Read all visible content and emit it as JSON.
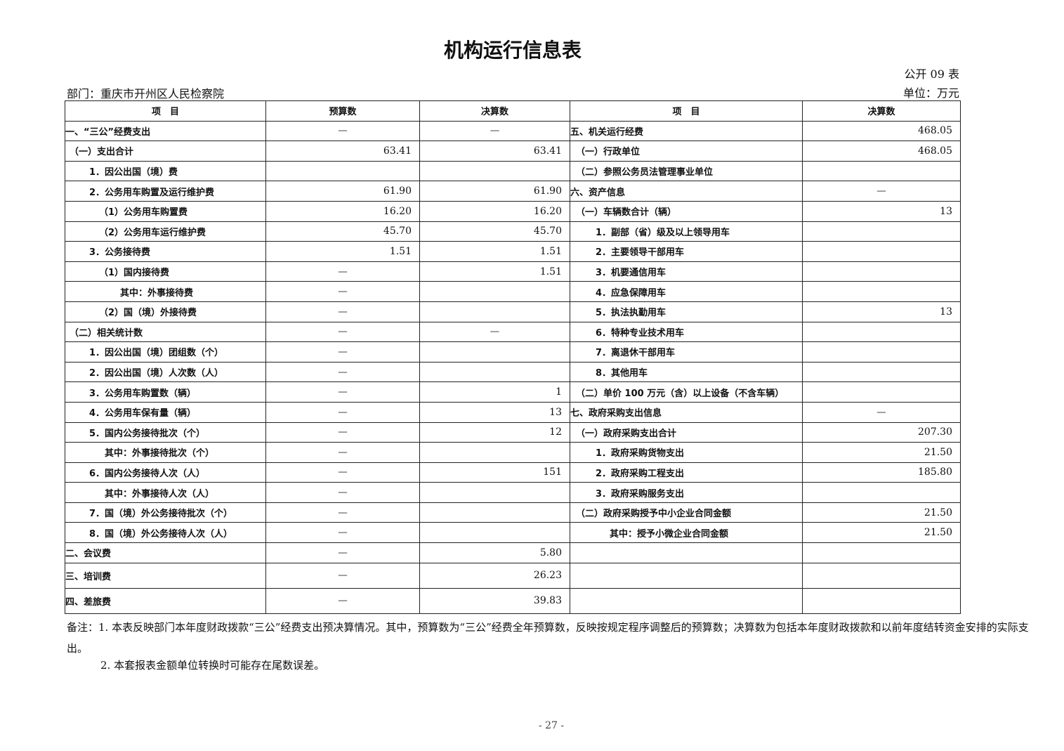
{
  "title": "机构运行信息表",
  "table_no": "公开 09 表",
  "department": "部门：重庆市开州区人民检察院",
  "unit": "单位：万元",
  "headers": [
    "项　目",
    "预算数",
    "决算数",
    "项　目",
    "决算数"
  ],
  "rows": [
    {
      "l": "一、“三公”经费支出",
      "lv": 0,
      "b": "—",
      "f": "—",
      "r": "五、机关运行经费",
      "rv": 0,
      "rf": "468.05"
    },
    {
      "l": "（一）支出合计",
      "lv": 1,
      "b": "63.41",
      "f": "63.41",
      "r": "（一）行政单位",
      "rv": 1,
      "rf": "468.05"
    },
    {
      "l": "1．因公出国（境）费",
      "lv": 2,
      "b": "",
      "f": "",
      "r": "（二）参照公务员法管理事业单位",
      "rv": 1,
      "rf": ""
    },
    {
      "l": "2．公务用车购置及运行维护费",
      "lv": 2,
      "b": "61.90",
      "f": "61.90",
      "r": "六、资产信息",
      "rv": 0,
      "rf": "—"
    },
    {
      "l": "（1）公务用车购置费",
      "lv": 3,
      "b": "16.20",
      "f": "16.20",
      "r": "（一）车辆数合计（辆）",
      "rv": 1,
      "rf": "13"
    },
    {
      "l": "（2）公务用车运行维护费",
      "lv": 3,
      "b": "45.70",
      "f": "45.70",
      "r": "1．副部（省）级及以上领导用车",
      "rv": 2,
      "rf": ""
    },
    {
      "l": "3．公务接待费",
      "lv": 2,
      "b": "1.51",
      "f": "1.51",
      "r": "2．主要领导干部用车",
      "rv": 2,
      "rf": ""
    },
    {
      "l": "（1）国内接待费",
      "lv": 3,
      "b": "—",
      "f": "1.51",
      "r": "3．机要通信用车",
      "rv": 2,
      "rf": ""
    },
    {
      "l": "其中：外事接待费",
      "lv": 4,
      "b": "—",
      "f": "",
      "r": "4．应急保障用车",
      "rv": 2,
      "rf": ""
    },
    {
      "l": "（2）国（境）外接待费",
      "lv": 3,
      "b": "—",
      "f": "",
      "r": "5．执法执勤用车",
      "rv": 2,
      "rf": "13"
    },
    {
      "l": "（二）相关统计数",
      "lv": 1,
      "b": "—",
      "f": "—",
      "r": "6．特种专业技术用车",
      "rv": 2,
      "rf": ""
    },
    {
      "l": "1．因公出国（境）团组数（个）",
      "lv": 2,
      "b": "—",
      "f": "",
      "r": "7．离退休干部用车",
      "rv": 2,
      "rf": ""
    },
    {
      "l": "2．因公出国（境）人次数（人）",
      "lv": 2,
      "b": "—",
      "f": "",
      "r": "8．其他用车",
      "rv": 2,
      "rf": ""
    },
    {
      "l": "3．公务用车购置数（辆）",
      "lv": 2,
      "b": "—",
      "f": "1",
      "r": "（二）单价 100 万元（含）以上设备（不含车辆）",
      "rv": 1,
      "rf": ""
    },
    {
      "l": "4．公务用车保有量（辆）",
      "lv": 2,
      "b": "—",
      "f": "13",
      "r": "七、政府采购支出信息",
      "rv": 0,
      "rf": "—"
    },
    {
      "l": "5．国内公务接待批次（个）",
      "lv": 2,
      "b": "—",
      "f": "12",
      "r": "（一）政府采购支出合计",
      "rv": 1,
      "rf": "207.30"
    },
    {
      "l": "其中：外事接待批次（个）",
      "lv": 5,
      "b": "—",
      "f": "",
      "r": "1．政府采购货物支出",
      "rv": 2,
      "rf": "21.50"
    },
    {
      "l": "6．国内公务接待人次（人）",
      "lv": 2,
      "b": "—",
      "f": "151",
      "r": "2．政府采购工程支出",
      "rv": 2,
      "rf": "185.80"
    },
    {
      "l": "其中：外事接待人次（人）",
      "lv": 5,
      "b": "—",
      "f": "",
      "r": "3．政府采购服务支出",
      "rv": 2,
      "rf": ""
    },
    {
      "l": "7．国（境）外公务接待批次（个）",
      "lv": 2,
      "b": "—",
      "f": "",
      "r": "（二）政府采购授予中小企业合同金额",
      "rv": 1,
      "rf": "21.50"
    },
    {
      "l": "8．国（境）外公务接待人次（人）",
      "lv": 2,
      "b": "—",
      "f": "",
      "r": "其中：授予小微企业合同金额",
      "rv": 3,
      "rf": "21.50"
    },
    {
      "l": "二、会议费",
      "lv": 0,
      "b": "—",
      "f": "5.80",
      "r": "",
      "rv": 0,
      "rf": ""
    },
    {
      "l": "三、培训费",
      "lv": 0,
      "b": "—",
      "f": "26.23",
      "r": "",
      "rv": 0,
      "rf": ""
    },
    {
      "l": "四、差旅费",
      "lv": 0,
      "b": "—",
      "f": "39.83",
      "r": "",
      "rv": 0,
      "rf": ""
    }
  ],
  "notes": [
    "备注：1. 本表反映部门本年度财政拨款“三公”经费支出预决算情况。其中，预算数为“三公”经费全年预算数，反映按规定程序调整后的预算数；决算数为包括本年度财政拨款和以前年度结转资金安排的实际支出。",
    "2. 本套报表金额单位转换时可能存在尾数误差。"
  ],
  "page_number": "- 27 -"
}
